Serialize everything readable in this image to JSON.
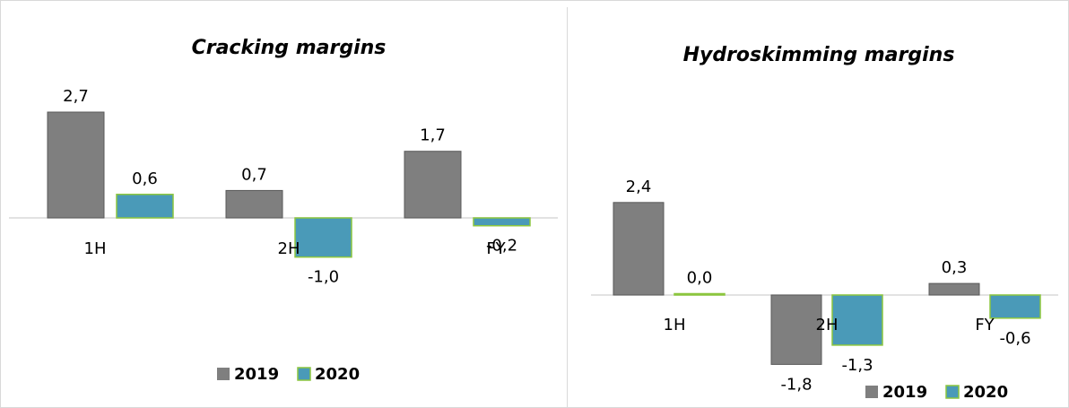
{
  "colors": {
    "2019": "#7f7f7f",
    "2020": "#4a9ab8",
    "2020_border": "#8cc63e",
    "axis": "#d9d9d9"
  },
  "chart_data": [
    {
      "type": "bar",
      "title": "Cracking margins",
      "categories": [
        "1H",
        "2H",
        "FY"
      ],
      "series": [
        {
          "name": "2019",
          "values": [
            2.7,
            0.7,
            1.7
          ],
          "labels": [
            "2,7",
            "0,7",
            "1,7"
          ]
        },
        {
          "name": "2020",
          "values": [
            0.6,
            -1.0,
            -0.2
          ],
          "labels": [
            "0,6",
            "-1,0",
            "-0,2"
          ]
        }
      ],
      "legend_position": "bottom",
      "grid": false
    },
    {
      "type": "bar",
      "title": "Hydroskimming margins",
      "categories": [
        "1H",
        "2H",
        "FY"
      ],
      "series": [
        {
          "name": "2019",
          "values": [
            2.4,
            -1.8,
            0.3
          ],
          "labels": [
            "2,4",
            "-1,8",
            "0,3"
          ]
        },
        {
          "name": "2020",
          "values": [
            0.0,
            -1.3,
            -0.6
          ],
          "labels": [
            "0,0",
            "-1,3",
            "-0,6"
          ]
        }
      ],
      "legend_position": "bottom",
      "grid": false
    }
  ]
}
